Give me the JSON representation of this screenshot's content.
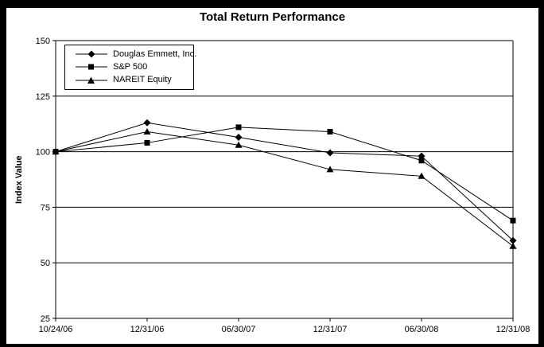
{
  "chart_data": {
    "type": "line",
    "title": "Total Return Performance",
    "xlabel": "",
    "ylabel": "Index Value",
    "categories": [
      "10/24/06",
      "12/31/06",
      "06/30/07",
      "12/31/07",
      "06/30/08",
      "12/31/08"
    ],
    "series": [
      {
        "name": "Douglas Emmett, Inc.",
        "marker": "diamond",
        "values": [
          100,
          113,
          106.5,
          99.5,
          98,
          60
        ]
      },
      {
        "name": "S&P 500",
        "marker": "square",
        "values": [
          100,
          104,
          111,
          109,
          96,
          69
        ]
      },
      {
        "name": "NAREIT Equity",
        "marker": "triangle",
        "values": [
          100,
          109,
          103,
          92,
          89,
          57.5
        ]
      }
    ],
    "ylim": [
      25,
      150
    ],
    "yticks": [
      25,
      50,
      75,
      100,
      125,
      150
    ],
    "grid": true,
    "legend_position": "top-left-inside",
    "colors": {
      "line": "#000000",
      "marker": "#000000",
      "background": "#ffffff",
      "figure_border": "#000000",
      "text": "#000000"
    }
  }
}
